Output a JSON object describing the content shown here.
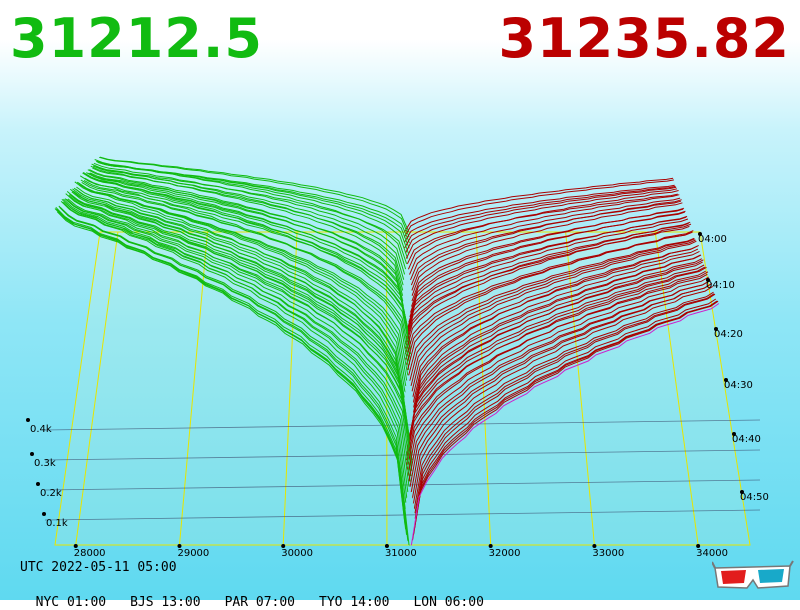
{
  "header": {
    "bid_price": "31212.5",
    "ask_price": "31235.82",
    "bid_color": "#11bb11",
    "ask_color": "#bb0000"
  },
  "footer": {
    "utc_label": "UTC 2022-05-11 05:00",
    "zones": [
      "NYC 01:00",
      "BJS 13:00",
      "PAR 07:00",
      "TYO 14:00",
      "LON 06:00"
    ]
  },
  "icons": {
    "glasses": "3d-glasses-icon"
  },
  "chart_data": {
    "type": "area",
    "x_ticks": [
      28000,
      29000,
      30000,
      31000,
      32000,
      33000,
      34000
    ],
    "x_tick_labels": [
      "28000",
      "29000",
      "30000",
      "31000",
      "32000",
      "33000",
      "34000"
    ],
    "depth_ticks": [
      "0.1k",
      "0.2k",
      "0.3k",
      "0.4k"
    ],
    "time_ticks": [
      "04:00",
      "04:10",
      "04:20",
      "04:30",
      "04:40",
      "04:50"
    ],
    "series": [
      {
        "name": "bids",
        "color": "#11bb11",
        "price_range": [
          27800,
          31212.5
        ]
      },
      {
        "name": "asks",
        "color": "#aa0000",
        "price_range": [
          31235.82,
          34500
        ]
      }
    ],
    "snapshots": 60
  }
}
